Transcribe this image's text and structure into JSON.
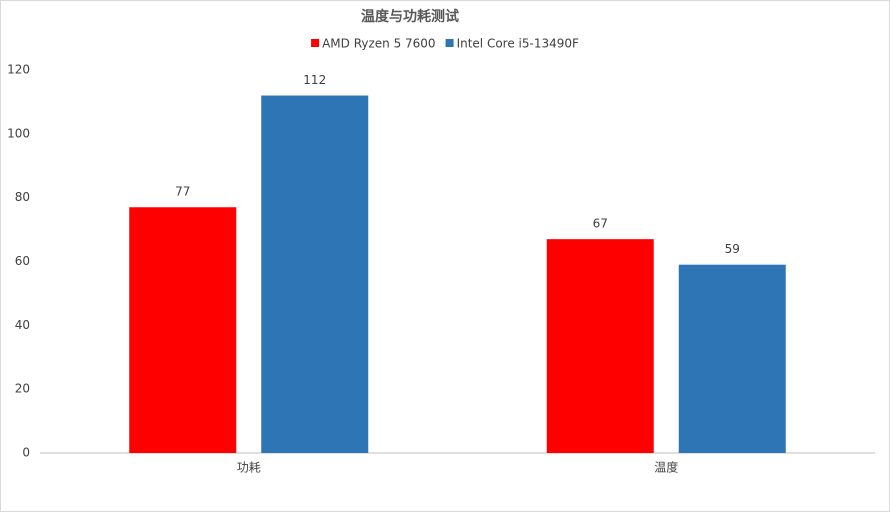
{
  "chart_data": {
    "type": "bar",
    "title": "温度与功耗测试",
    "categories": [
      "功耗",
      "温度"
    ],
    "series": [
      {
        "name": "AMD Ryzen 5 7600",
        "color": "#ff0000",
        "values": [
          77,
          67
        ]
      },
      {
        "name": "Intel Core i5-13490F",
        "color": "#2e75b6",
        "values": [
          112,
          59
        ]
      }
    ],
    "ylim": [
      0,
      120
    ],
    "yticks": [
      0,
      20,
      40,
      60,
      80,
      100,
      120
    ],
    "grid": false
  }
}
